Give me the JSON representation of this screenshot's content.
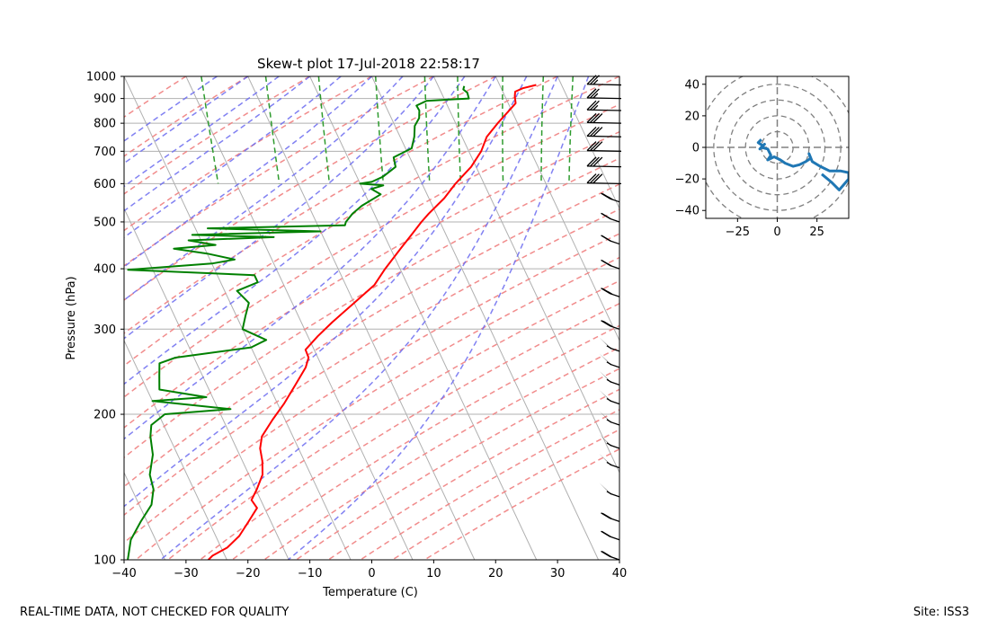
{
  "chart_data": [
    {
      "type": "skew-t",
      "title": "Skew-t plot 17-Jul-2018 22:58:17",
      "xlabel": "Temperature (C)",
      "ylabel": "Pressure (hPa)",
      "xlim": [
        -40,
        40
      ],
      "ylim": [
        1000,
        100
      ],
      "y_scale": "log",
      "x_ticks": [
        "−40",
        "−30",
        "−20",
        "−10",
        "0",
        "10",
        "20",
        "30",
        "40"
      ],
      "y_ticks": [
        "100",
        "200",
        "300",
        "400",
        "500",
        "600",
        "700",
        "800",
        "900",
        "1000"
      ],
      "grid": true,
      "colors": {
        "temperature": "#ff0000",
        "dewpoint": "#008000",
        "dry_adiabats": "#f08080",
        "moist_adiabats": "#6b6bf0",
        "mixing_ratio": "#2e9b2e",
        "isotherms": "#b0b0b0",
        "wind_barbs": "#000000"
      },
      "temperature_profile": [
        {
          "p": 960,
          "t": 25.9
        },
        {
          "p": 945,
          "t": 23.5
        },
        {
          "p": 930,
          "t": 22.0
        },
        {
          "p": 910,
          "t": 21.6
        },
        {
          "p": 880,
          "t": 21.2
        },
        {
          "p": 850,
          "t": 19.6
        },
        {
          "p": 800,
          "t": 16.8
        },
        {
          "p": 750,
          "t": 14.0
        },
        {
          "p": 700,
          "t": 12.0
        },
        {
          "p": 650,
          "t": 9.2
        },
        {
          "p": 600,
          "t": 5.4
        },
        {
          "p": 560,
          "t": 2.5
        },
        {
          "p": 520,
          "t": -1.2
        },
        {
          "p": 500,
          "t": -3.0
        },
        {
          "p": 470,
          "t": -5.6
        },
        {
          "p": 440,
          "t": -8.4
        },
        {
          "p": 400,
          "t": -12.4
        },
        {
          "p": 370,
          "t": -15.4
        },
        {
          "p": 340,
          "t": -20.0
        },
        {
          "p": 310,
          "t": -25.0
        },
        {
          "p": 290,
          "t": -28.4
        },
        {
          "p": 272,
          "t": -31.4
        },
        {
          "p": 262,
          "t": -31.5
        },
        {
          "p": 250,
          "t": -32.7
        },
        {
          "p": 230,
          "t": -35.7
        },
        {
          "p": 210,
          "t": -39.0
        },
        {
          "p": 195,
          "t": -42.0
        },
        {
          "p": 180,
          "t": -45.0
        },
        {
          "p": 170,
          "t": -46.2
        },
        {
          "p": 160,
          "t": -46.8
        },
        {
          "p": 150,
          "t": -47.8
        },
        {
          "p": 140,
          "t": -49.8
        },
        {
          "p": 133,
          "t": -51.5
        },
        {
          "p": 128,
          "t": -51.2
        },
        {
          "p": 120,
          "t": -53.6
        },
        {
          "p": 112,
          "t": -56.2
        },
        {
          "p": 106,
          "t": -59.0
        },
        {
          "p": 102,
          "t": -62.0
        },
        {
          "p": 100,
          "t": -63.0
        }
      ],
      "dewpoint_profile": [
        {
          "p": 955,
          "t": 14.2
        },
        {
          "p": 940,
          "t": 13.8
        },
        {
          "p": 925,
          "t": 14.2
        },
        {
          "p": 900,
          "t": 14.0
        },
        {
          "p": 890,
          "t": 7.0
        },
        {
          "p": 870,
          "t": 5.0
        },
        {
          "p": 850,
          "t": 5.1
        },
        {
          "p": 820,
          "t": 4.5
        },
        {
          "p": 790,
          "t": 3.2
        },
        {
          "p": 750,
          "t": 2.3
        },
        {
          "p": 710,
          "t": 1.0
        },
        {
          "p": 680,
          "t": -2.6
        },
        {
          "p": 650,
          "t": -3.0
        },
        {
          "p": 620,
          "t": -5.8
        },
        {
          "p": 605,
          "t": -8.0
        },
        {
          "p": 600,
          "t": -10.0
        },
        {
          "p": 595,
          "t": -6.4
        },
        {
          "p": 585,
          "t": -8.6
        },
        {
          "p": 570,
          "t": -7.5
        },
        {
          "p": 540,
          "t": -11.4
        },
        {
          "p": 520,
          "t": -13.5
        },
        {
          "p": 500,
          "t": -15.2
        },
        {
          "p": 492,
          "t": -15.6
        },
        {
          "p": 485,
          "t": -38.0
        },
        {
          "p": 478,
          "t": -20.0
        },
        {
          "p": 470,
          "t": -41.0
        },
        {
          "p": 465,
          "t": -28.0
        },
        {
          "p": 458,
          "t": -42.0
        },
        {
          "p": 448,
          "t": -38.0
        },
        {
          "p": 440,
          "t": -45.0
        },
        {
          "p": 430,
          "t": -40.0
        },
        {
          "p": 418,
          "t": -36.0
        },
        {
          "p": 410,
          "t": -40.0
        },
        {
          "p": 398,
          "t": -54.0
        },
        {
          "p": 388,
          "t": -34.0
        },
        {
          "p": 375,
          "t": -34.0
        },
        {
          "p": 360,
          "t": -38.0
        },
        {
          "p": 340,
          "t": -37.0
        },
        {
          "p": 320,
          "t": -38.5
        },
        {
          "p": 300,
          "t": -40.0
        },
        {
          "p": 285,
          "t": -37.0
        },
        {
          "p": 275,
          "t": -40.0
        },
        {
          "p": 262,
          "t": -53.0
        },
        {
          "p": 255,
          "t": -56.0
        },
        {
          "p": 240,
          "t": -57.0
        },
        {
          "p": 225,
          "t": -58.0
        },
        {
          "p": 217,
          "t": -51.0
        },
        {
          "p": 213,
          "t": -60.0
        },
        {
          "p": 205,
          "t": -48.0
        },
        {
          "p": 200,
          "t": -59.0
        },
        {
          "p": 190,
          "t": -62.0
        },
        {
          "p": 180,
          "t": -63.0
        },
        {
          "p": 165,
          "t": -64.0
        },
        {
          "p": 150,
          "t": -66.0
        },
        {
          "p": 140,
          "t": -66.5
        },
        {
          "p": 130,
          "t": -68.0
        },
        {
          "p": 120,
          "t": -71.0
        },
        {
          "p": 110,
          "t": -74.0
        },
        {
          "p": 100,
          "t": -76.0
        }
      ],
      "wind_barbs": [
        {
          "p": 960,
          "speed_kt": 25
        },
        {
          "p": 900,
          "speed_kt": 25
        },
        {
          "p": 850,
          "speed_kt": 25
        },
        {
          "p": 800,
          "speed_kt": 30
        },
        {
          "p": 750,
          "speed_kt": 30
        },
        {
          "p": 700,
          "speed_kt": 30
        },
        {
          "p": 650,
          "speed_kt": 30
        },
        {
          "p": 600,
          "speed_kt": 30
        },
        {
          "p": 550,
          "speed_kt": 35
        },
        {
          "p": 500,
          "speed_kt": 20
        },
        {
          "p": 450,
          "speed_kt": 20
        },
        {
          "p": 400,
          "speed_kt": 25
        },
        {
          "p": 350,
          "speed_kt": 35
        },
        {
          "p": 300,
          "speed_kt": 40
        },
        {
          "p": 270,
          "speed_kt": 55
        },
        {
          "p": 250,
          "speed_kt": 55
        },
        {
          "p": 230,
          "speed_kt": 55
        },
        {
          "p": 210,
          "speed_kt": 55
        },
        {
          "p": 190,
          "speed_kt": 55
        },
        {
          "p": 170,
          "speed_kt": 55
        },
        {
          "p": 155,
          "speed_kt": 55
        },
        {
          "p": 135,
          "speed_kt": 55
        },
        {
          "p": 120,
          "speed_kt": 30
        },
        {
          "p": 110,
          "speed_kt": 20
        },
        {
          "p": 100,
          "speed_kt": 30
        }
      ]
    },
    {
      "type": "hodograph",
      "xlim": [
        -45,
        45
      ],
      "ylim": [
        -45,
        45
      ],
      "x_ticks": [
        "−25",
        "0",
        "25"
      ],
      "y_ticks": [
        "40",
        "20",
        "0",
        "−20",
        "−40"
      ],
      "rings": [
        10,
        20,
        30,
        40,
        50
      ],
      "line_color": "#1f77b4",
      "points": [
        {
          "u": -10,
          "v": 5
        },
        {
          "u": -12,
          "v": 3
        },
        {
          "u": -9,
          "v": 1
        },
        {
          "u": -11,
          "v": -1
        },
        {
          "u": -8,
          "v": 2
        },
        {
          "u": -10,
          "v": 0
        },
        {
          "u": -6,
          "v": -1
        },
        {
          "u": -4,
          "v": -5
        },
        {
          "u": -6,
          "v": -8
        },
        {
          "u": -2,
          "v": -6
        },
        {
          "u": 2,
          "v": -8
        },
        {
          "u": 5,
          "v": -10
        },
        {
          "u": 10,
          "v": -12
        },
        {
          "u": 14,
          "v": -11
        },
        {
          "u": 18,
          "v": -9
        },
        {
          "u": 21,
          "v": -7
        },
        {
          "u": 20,
          "v": -4
        },
        {
          "u": 22,
          "v": -9
        },
        {
          "u": 27,
          "v": -12
        },
        {
          "u": 33,
          "v": -15
        },
        {
          "u": 40,
          "v": -15
        },
        {
          "u": 45,
          "v": -16
        },
        {
          "u": 45,
          "v": -20
        },
        {
          "u": 39,
          "v": -27
        },
        {
          "u": 34,
          "v": -22
        },
        {
          "u": 28,
          "v": -17
        }
      ]
    }
  ],
  "footer": {
    "left": "REAL-TIME DATA, NOT CHECKED FOR QUALITY",
    "right": "Site: ISS3"
  }
}
